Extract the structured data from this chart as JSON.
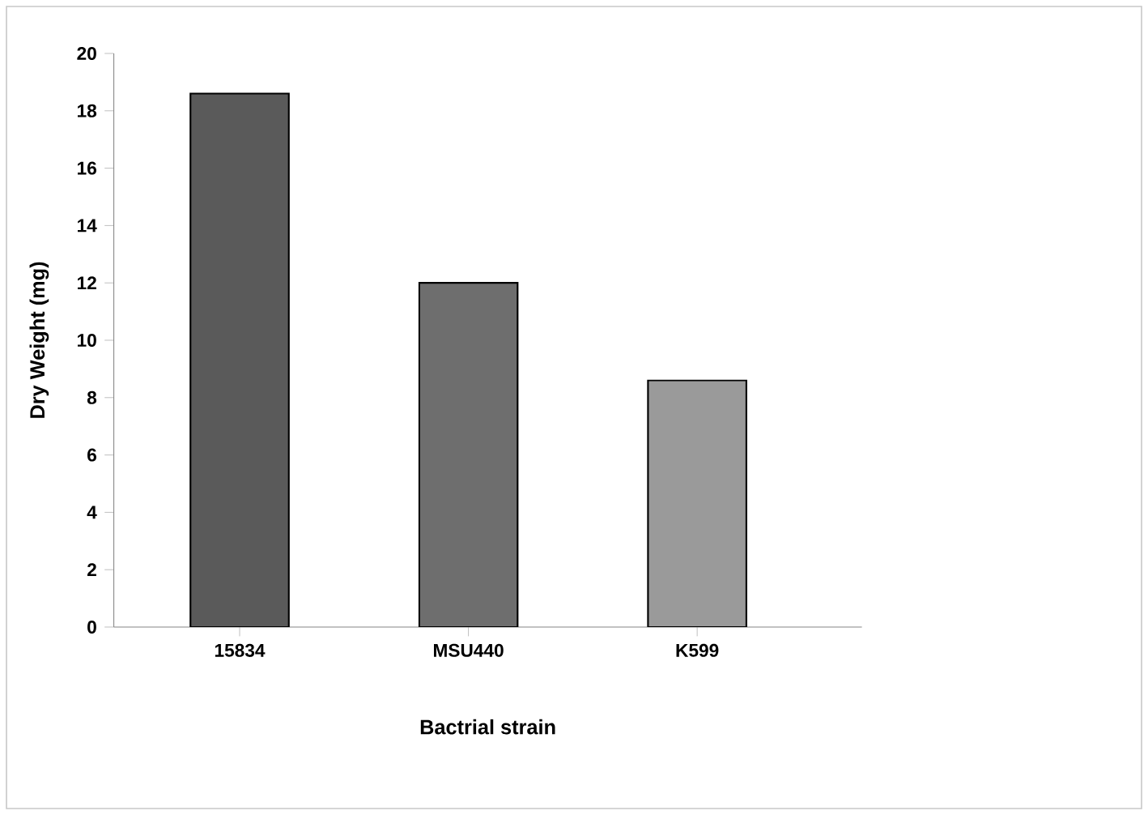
{
  "chart_data": {
    "type": "bar",
    "xlabel": "Bactrial strain",
    "ylabel": "Dry Weight (mg)",
    "categories": [
      "15834",
      "MSU440",
      "K599"
    ],
    "values": [
      18.6,
      12.0,
      8.6
    ],
    "colors": [
      "#5a5a5a",
      "#6e6e6e",
      "#9a9a9a"
    ],
    "ylim": [
      0,
      20
    ],
    "yticks": [
      0,
      2,
      4,
      6,
      8,
      10,
      12,
      14,
      16,
      18,
      20
    ]
  }
}
